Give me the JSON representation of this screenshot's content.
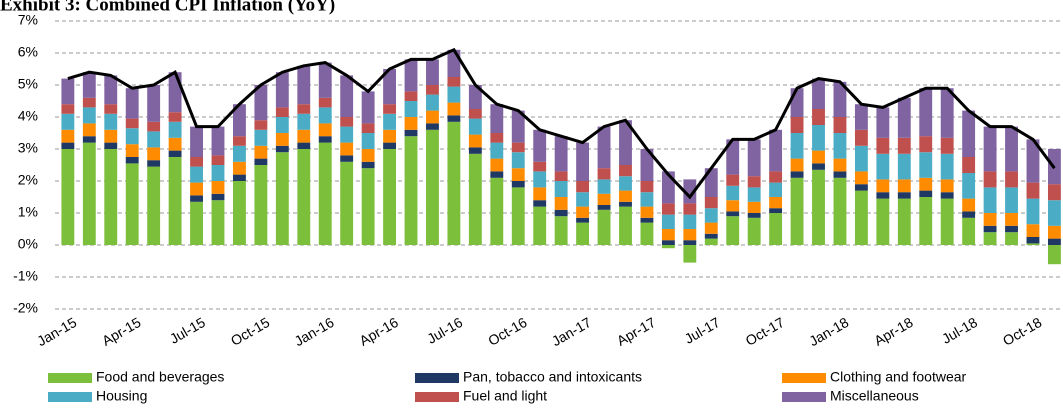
{
  "chart_data": {
    "type": "stacked_bar_line",
    "title": "Exhibit 3: Combined CPI Inflation (YoY)",
    "categories": [
      "Jan-15",
      null,
      null,
      "Apr-15",
      null,
      null,
      "Jul-15",
      null,
      null,
      "Oct-15",
      null,
      null,
      "Jan-16",
      null,
      null,
      "Apr-16",
      null,
      null,
      "Jul-16",
      null,
      null,
      "Oct-16",
      null,
      null,
      "Jan-17",
      null,
      null,
      "Apr-17",
      null,
      null,
      "Jul-17",
      null,
      null,
      "Oct-17",
      null,
      null,
      "Jan-18",
      null,
      null,
      "Apr-18",
      null,
      null,
      "Jul-18",
      null,
      null,
      "Oct-18",
      null
    ],
    "series": [
      {
        "name": "Food and beverages",
        "color": "#7cbf3a",
        "values": [
          3.0,
          3.2,
          3.0,
          2.55,
          2.45,
          2.75,
          1.35,
          1.4,
          2.0,
          2.5,
          2.9,
          3.0,
          3.2,
          2.6,
          2.4,
          3.0,
          3.4,
          3.6,
          3.85,
          2.85,
          2.1,
          1.8,
          1.2,
          0.9,
          0.7,
          1.1,
          1.2,
          0.7,
          -0.1,
          -0.55,
          0.2,
          0.9,
          0.85,
          1.0,
          2.1,
          2.35,
          2.1,
          1.7,
          1.45,
          1.45,
          1.5,
          1.45,
          0.85,
          0.4,
          0.4,
          0.05,
          -0.6
        ]
      },
      {
        "name": "Pan, tobacco and intoxicants",
        "color": "#1f3864",
        "values": [
          0.2,
          0.2,
          0.2,
          0.2,
          0.2,
          0.2,
          0.2,
          0.2,
          0.2,
          0.2,
          0.2,
          0.2,
          0.2,
          0.2,
          0.2,
          0.2,
          0.2,
          0.2,
          0.2,
          0.2,
          0.2,
          0.2,
          0.2,
          0.2,
          0.15,
          0.15,
          0.15,
          0.15,
          0.15,
          0.15,
          0.15,
          0.15,
          0.15,
          0.15,
          0.2,
          0.2,
          0.2,
          0.2,
          0.2,
          0.2,
          0.2,
          0.2,
          0.2,
          0.2,
          0.2,
          0.2,
          0.2
        ]
      },
      {
        "name": "Clothing and footwear",
        "color": "#ff8c00",
        "values": [
          0.4,
          0.4,
          0.4,
          0.4,
          0.4,
          0.4,
          0.4,
          0.4,
          0.4,
          0.4,
          0.4,
          0.4,
          0.4,
          0.4,
          0.4,
          0.4,
          0.4,
          0.4,
          0.4,
          0.4,
          0.4,
          0.4,
          0.4,
          0.4,
          0.35,
          0.35,
          0.35,
          0.35,
          0.35,
          0.35,
          0.35,
          0.35,
          0.35,
          0.35,
          0.4,
          0.4,
          0.4,
          0.4,
          0.4,
          0.4,
          0.4,
          0.4,
          0.4,
          0.4,
          0.4,
          0.4,
          0.4
        ]
      },
      {
        "name": "Housing",
        "color": "#4bacc6",
        "values": [
          0.5,
          0.5,
          0.5,
          0.5,
          0.5,
          0.5,
          0.5,
          0.5,
          0.5,
          0.5,
          0.5,
          0.5,
          0.5,
          0.5,
          0.5,
          0.5,
          0.5,
          0.5,
          0.5,
          0.5,
          0.5,
          0.5,
          0.5,
          0.5,
          0.45,
          0.45,
          0.45,
          0.45,
          0.45,
          0.45,
          0.45,
          0.45,
          0.45,
          0.45,
          0.8,
          0.8,
          0.8,
          0.8,
          0.8,
          0.8,
          0.8,
          0.8,
          0.8,
          0.8,
          0.8,
          0.8,
          0.8
        ]
      },
      {
        "name": "Fuel and light",
        "color": "#c0504d",
        "values": [
          0.3,
          0.3,
          0.3,
          0.3,
          0.3,
          0.3,
          0.3,
          0.3,
          0.3,
          0.3,
          0.3,
          0.3,
          0.3,
          0.3,
          0.3,
          0.3,
          0.3,
          0.3,
          0.3,
          0.3,
          0.3,
          0.3,
          0.3,
          0.3,
          0.35,
          0.35,
          0.35,
          0.35,
          0.35,
          0.35,
          0.35,
          0.35,
          0.35,
          0.35,
          0.5,
          0.5,
          0.5,
          0.5,
          0.5,
          0.5,
          0.5,
          0.5,
          0.5,
          0.5,
          0.5,
          0.5,
          0.5
        ]
      },
      {
        "name": "Miscellaneous",
        "color": "#8064a2",
        "values": [
          0.8,
          0.8,
          0.9,
          0.95,
          1.15,
          1.25,
          0.95,
          0.9,
          1.0,
          1.1,
          1.1,
          1.2,
          1.1,
          1.3,
          1.0,
          1.1,
          1.0,
          0.8,
          0.85,
          0.75,
          0.9,
          1.0,
          1.0,
          1.1,
          1.2,
          1.3,
          1.4,
          1.0,
          1.0,
          0.75,
          0.9,
          1.1,
          1.15,
          1.3,
          0.9,
          0.95,
          1.1,
          0.8,
          0.95,
          1.25,
          1.5,
          1.55,
          1.45,
          1.4,
          1.4,
          1.35,
          1.1
        ]
      }
    ],
    "line": {
      "color": "#000000",
      "values": [
        5.2,
        5.4,
        5.3,
        4.9,
        5.0,
        5.4,
        3.7,
        3.7,
        4.4,
        5.0,
        5.4,
        5.6,
        5.7,
        5.3,
        4.8,
        5.5,
        5.8,
        5.8,
        6.1,
        5.0,
        4.4,
        4.2,
        3.6,
        3.4,
        3.2,
        3.7,
        3.9,
        3.0,
        2.2,
        1.5,
        2.4,
        3.3,
        3.3,
        3.6,
        4.9,
        5.2,
        5.1,
        4.4,
        4.3,
        4.6,
        4.9,
        4.9,
        4.2,
        3.7,
        3.7,
        3.3,
        2.4
      ]
    },
    "ylim": [
      -2,
      7
    ],
    "yticks": [
      {
        "value": -2,
        "label": "-2%"
      },
      {
        "value": -1,
        "label": "-1%"
      },
      {
        "value": 0,
        "label": "0%"
      },
      {
        "value": 1,
        "label": "1%"
      },
      {
        "value": 2,
        "label": "2%"
      },
      {
        "value": 3,
        "label": "3%"
      },
      {
        "value": 4,
        "label": "4%"
      },
      {
        "value": 5,
        "label": "5%"
      },
      {
        "value": 6,
        "label": "6%"
      },
      {
        "value": 7,
        "label": "7%"
      }
    ],
    "grid": true,
    "legend": "bottom"
  }
}
